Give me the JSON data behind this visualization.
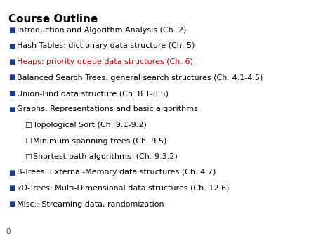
{
  "title": "Course Outline",
  "background_color": "#ffffff",
  "title_color": "#000000",
  "title_fontsize": 11,
  "bullet_fontsize": 8.0,
  "bullet_color": "#000000",
  "highlight_color": "#cc0000",
  "bullet_marker": "■",
  "sub_bullet_marker": "□",
  "bullet_marker_color": "#1a3a8a",
  "footer_text": "0",
  "items": [
    {
      "text": "Introduction and Algorithm Analysis (Ch. 2)",
      "level": 0,
      "highlight": false
    },
    {
      "text": "Hash Tables: dictionary data structure (Ch. 5)",
      "level": 0,
      "highlight": false
    },
    {
      "text": "Heaps: priority queue data structures (Ch. 6)",
      "level": 0,
      "highlight": true
    },
    {
      "text": "Balanced Search Trees: general search structures (Ch. 4.1-4.5)",
      "level": 0,
      "highlight": false
    },
    {
      "text": "Union-Find data structure (Ch. 8.1-8.5)",
      "level": 0,
      "highlight": false
    },
    {
      "text": "Graphs: Representations and basic algorithms",
      "level": 0,
      "highlight": false
    },
    {
      "text": "Topological Sort (Ch. 9.1-9.2)",
      "level": 1,
      "highlight": false
    },
    {
      "text": "Minimum spanning trees (Ch. 9.5)",
      "level": 1,
      "highlight": false
    },
    {
      "text": "Shortest-path algorithms  (Ch. 9.3.2)",
      "level": 1,
      "highlight": false
    },
    {
      "text": "B-Trees: External-Memory data structures (Ch. 4.7)",
      "level": 0,
      "highlight": false
    },
    {
      "text": "kD-Trees: Multi-Dimensional data structures (Ch. 12.6)",
      "level": 0,
      "highlight": false
    },
    {
      "text": "Misc.: Streaming data, randomization",
      "level": 0,
      "highlight": false
    }
  ]
}
